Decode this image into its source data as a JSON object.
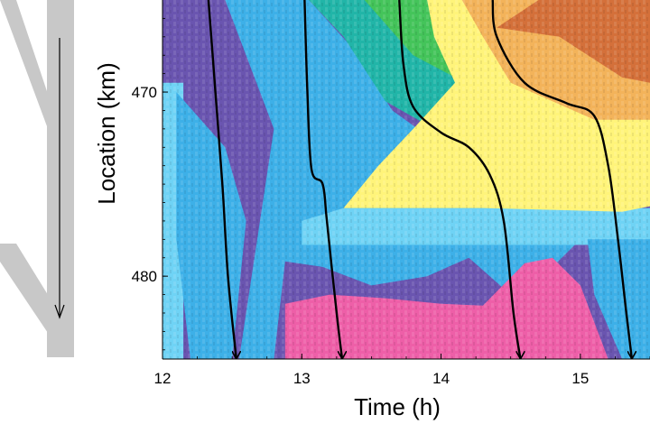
{
  "chart_data": {
    "type": "heatmap",
    "title": "",
    "xlabel": "Time (h)",
    "ylabel": "Location (km)",
    "xlim": [
      12,
      15.5
    ],
    "ylim": [
      465,
      484.5
    ],
    "y_inverted": true,
    "x_ticks": [
      12,
      13,
      14,
      15
    ],
    "y_ticks": [
      470,
      480
    ],
    "colors": {
      "purple": "#6a55b0",
      "blue": "#3db0e8",
      "light_blue": "#6fd3f5",
      "teal": "#21b5a8",
      "green": "#44c45a",
      "yellow": "#fff47a",
      "orange": "#f3b35a",
      "red": "#d4703a",
      "pink": "#ee5fa8",
      "trajectory": "#000000",
      "road": "#c8c8c8"
    },
    "trajectories": [
      {
        "points": [
          [
            12.33,
            465
          ],
          [
            12.38,
            470
          ],
          [
            12.43,
            475
          ],
          [
            12.47,
            480
          ],
          [
            12.53,
            484.5
          ]
        ]
      },
      {
        "points": [
          [
            13.02,
            465
          ],
          [
            13.04,
            470
          ],
          [
            13.07,
            474.2
          ],
          [
            13.15,
            475
          ],
          [
            13.18,
            477
          ],
          [
            13.25,
            482
          ],
          [
            13.29,
            484.5
          ]
        ]
      },
      {
        "points": [
          [
            13.7,
            465
          ],
          [
            13.73,
            468.5
          ],
          [
            13.8,
            470.8
          ],
          [
            14.0,
            472.2
          ],
          [
            14.2,
            473
          ],
          [
            14.35,
            474.5
          ],
          [
            14.45,
            477
          ],
          [
            14.52,
            482
          ],
          [
            14.57,
            484.5
          ]
        ]
      },
      {
        "points": [
          [
            14.37,
            465
          ],
          [
            14.4,
            467
          ],
          [
            14.6,
            469.5
          ],
          [
            14.9,
            470.6
          ],
          [
            15.1,
            471.3
          ],
          [
            15.2,
            474
          ],
          [
            15.27,
            478
          ],
          [
            15.33,
            482
          ],
          [
            15.37,
            484.5
          ]
        ]
      }
    ],
    "regions": [
      {
        "color": "purple",
        "polygon": [
          [
            12,
            465
          ],
          [
            15.5,
            465
          ],
          [
            15.5,
            484.5
          ],
          [
            12,
            484.5
          ]
        ]
      },
      {
        "color": "light_blue",
        "polygon": [
          [
            12,
            469.5
          ],
          [
            12.15,
            469.5
          ],
          [
            12.15,
            484.5
          ],
          [
            12,
            484.5
          ]
        ]
      },
      {
        "color": "blue",
        "polygon": [
          [
            12.1,
            470
          ],
          [
            12.45,
            473
          ],
          [
            12.6,
            477
          ],
          [
            12.5,
            484.5
          ],
          [
            12.2,
            484.5
          ],
          [
            12.1,
            478
          ]
        ]
      },
      {
        "color": "blue",
        "polygon": [
          [
            12.45,
            465
          ],
          [
            13.05,
            465
          ],
          [
            13.35,
            467.5
          ],
          [
            13.65,
            471
          ],
          [
            14.2,
            474
          ],
          [
            15.5,
            476.5
          ],
          [
            15.5,
            479
          ],
          [
            15.0,
            478
          ],
          [
            14.8,
            479.5
          ],
          [
            14.5,
            481
          ],
          [
            14.2,
            479
          ],
          [
            13.9,
            480
          ],
          [
            13.5,
            480.5
          ],
          [
            13.15,
            479.5
          ],
          [
            12.88,
            479.2
          ],
          [
            12.8,
            484.5
          ],
          [
            12.55,
            484.5
          ],
          [
            12.7,
            477
          ],
          [
            12.8,
            472
          ],
          [
            12.6,
            468
          ]
        ]
      },
      {
        "color": "light_blue",
        "polygon": [
          [
            13.0,
            477
          ],
          [
            13.3,
            476.3
          ],
          [
            15.5,
            476.3
          ],
          [
            15.5,
            478.3
          ],
          [
            13.0,
            478.3
          ]
        ]
      },
      {
        "color": "blue",
        "polygon": [
          [
            15.05,
            478
          ],
          [
            15.5,
            478
          ],
          [
            15.5,
            484.5
          ],
          [
            15.3,
            484.5
          ],
          [
            15.1,
            481
          ]
        ]
      },
      {
        "color": "teal",
        "polygon": [
          [
            13.05,
            465
          ],
          [
            13.65,
            465
          ],
          [
            13.95,
            467.5
          ],
          [
            14.5,
            470.5
          ],
          [
            15.5,
            472.5
          ],
          [
            15.5,
            474.5
          ],
          [
            14.3,
            473.5
          ],
          [
            13.6,
            470.5
          ],
          [
            13.3,
            467
          ]
        ]
      },
      {
        "color": "green",
        "polygon": [
          [
            13.45,
            465
          ],
          [
            13.9,
            465
          ],
          [
            14.25,
            467.5
          ],
          [
            15.5,
            470.5
          ],
          [
            15.5,
            472
          ],
          [
            14.3,
            470
          ],
          [
            13.8,
            468
          ]
        ]
      },
      {
        "color": "yellow",
        "polygon": [
          [
            13.9,
            465
          ],
          [
            15.0,
            465
          ],
          [
            15.5,
            466
          ],
          [
            15.5,
            476.2
          ],
          [
            15.3,
            476.5
          ],
          [
            14.3,
            476.3
          ],
          [
            13.3,
            476.3
          ],
          [
            13.55,
            474
          ],
          [
            13.8,
            472
          ],
          [
            14.1,
            469.5
          ],
          [
            13.95,
            467
          ]
        ]
      },
      {
        "color": "orange",
        "polygon": [
          [
            14.15,
            465
          ],
          [
            15.5,
            465
          ],
          [
            15.5,
            471.5
          ],
          [
            15.1,
            471.5
          ],
          [
            14.5,
            469.5
          ],
          [
            14.3,
            467
          ]
        ]
      },
      {
        "color": "red",
        "polygon": [
          [
            14.7,
            465
          ],
          [
            15.5,
            465
          ],
          [
            15.5,
            469.5
          ],
          [
            15.3,
            469.2
          ],
          [
            14.85,
            467
          ],
          [
            14.4,
            466.5
          ]
        ]
      },
      {
        "color": "pink",
        "polygon": [
          [
            12.88,
            481.5
          ],
          [
            13.2,
            481
          ],
          [
            13.6,
            481.2
          ],
          [
            14.0,
            481.5
          ],
          [
            14.3,
            481.6
          ],
          [
            14.6,
            479.3
          ],
          [
            14.8,
            479
          ],
          [
            15.0,
            480.5
          ],
          [
            15.2,
            484.5
          ],
          [
            12.88,
            484.5
          ]
        ]
      }
    ]
  }
}
